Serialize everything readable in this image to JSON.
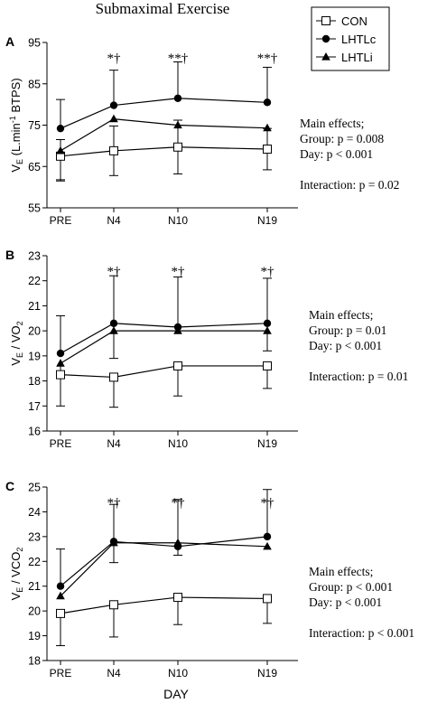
{
  "figure": {
    "title": "Submaximal Exercise",
    "x_axis_label": "DAY"
  },
  "legend": [
    {
      "name": "CON",
      "marker": "square-open"
    },
    {
      "name": "LHTLc",
      "marker": "circle-filled"
    },
    {
      "name": "LHTLi",
      "marker": "triangle-filled"
    }
  ],
  "chart_data": [
    {
      "type": "line",
      "panel_label": "A",
      "ylabel_main": "V",
      "ylabel_sub": "E",
      "ylabel_rest": " (L.min",
      "ylabel_sup": "-1",
      "ylabel_end": " BTPS)",
      "categories": [
        "PRE",
        "N4",
        "N10",
        "N19"
      ],
      "ylim": [
        55,
        95
      ],
      "yticks": [
        55,
        65,
        75,
        85,
        95
      ],
      "series": [
        {
          "name": "CON",
          "values": [
            67.5,
            68.8,
            69.7,
            69.2
          ],
          "error_plus": [
            4.0,
            6.0,
            6.5,
            5.0
          ],
          "error_minus": [
            6.0,
            6.0,
            6.5,
            5.0
          ]
        },
        {
          "name": "LHTLc",
          "values": [
            74.2,
            79.8,
            81.5,
            80.5
          ],
          "error_plus": [
            7.0,
            8.5,
            8.8,
            8.5
          ],
          "error_minus": [
            0,
            0,
            0,
            0
          ]
        },
        {
          "name": "LHTLi",
          "values": [
            68.8,
            76.5,
            75.0,
            74.3
          ],
          "error_plus": [
            0,
            0,
            0,
            0
          ],
          "error_minus": [
            7.0,
            0,
            0,
            0
          ]
        }
      ],
      "significance": [
        "",
        "*†",
        "**†",
        "**†"
      ],
      "annotations": [
        "Main effects;",
        "Group: p = 0.008",
        "Day: p < 0.001",
        "",
        "Interaction: p = 0.02"
      ]
    },
    {
      "type": "line",
      "panel_label": "B",
      "ylabel_main": "V",
      "ylabel_sub": "E",
      "ylabel_rest": " / VO",
      "ylabel_sub2": "2",
      "categories": [
        "PRE",
        "N4",
        "N10",
        "N19"
      ],
      "ylim": [
        16,
        23
      ],
      "yticks": [
        16,
        17,
        18,
        19,
        20,
        21,
        22,
        23
      ],
      "series": [
        {
          "name": "CON",
          "values": [
            18.25,
            18.15,
            18.6,
            18.6
          ],
          "error_plus": [
            0,
            0,
            0,
            0
          ],
          "error_minus": [
            1.25,
            1.2,
            1.2,
            0.9
          ]
        },
        {
          "name": "LHTLc",
          "values": [
            19.1,
            20.3,
            20.15,
            20.3
          ],
          "error_plus": [
            1.5,
            1.9,
            2.0,
            1.8
          ],
          "error_minus": [
            0,
            0,
            0,
            0
          ]
        },
        {
          "name": "LHTLi",
          "values": [
            18.7,
            20.0,
            20.0,
            20.0
          ],
          "error_plus": [
            0,
            0,
            0,
            0
          ],
          "error_minus": [
            0.6,
            1.1,
            0,
            0.8
          ]
        }
      ],
      "significance": [
        "",
        "*†",
        "*†",
        "*†"
      ],
      "annotations": [
        "Main effects;",
        "Group: p = 0.01",
        "Day: p < 0.001",
        "",
        "Interaction: p = 0.01"
      ]
    },
    {
      "type": "line",
      "panel_label": "C",
      "ylabel_main": "V",
      "ylabel_sub": "E",
      "ylabel_rest": " / VCO",
      "ylabel_sub2": "2",
      "categories": [
        "PRE",
        "N4",
        "N10",
        "N19"
      ],
      "ylim": [
        18,
        25
      ],
      "yticks": [
        18,
        19,
        20,
        21,
        22,
        23,
        24,
        25
      ],
      "series": [
        {
          "name": "CON",
          "values": [
            19.9,
            20.25,
            20.55,
            20.5
          ],
          "error_plus": [
            0,
            0,
            0,
            0
          ],
          "error_minus": [
            1.3,
            1.3,
            1.1,
            1.0
          ]
        },
        {
          "name": "LHTLc",
          "values": [
            21.0,
            22.8,
            22.6,
            23.0
          ],
          "error_plus": [
            1.5,
            1.5,
            1.9,
            1.9
          ],
          "error_minus": [
            0,
            0,
            0,
            0
          ]
        },
        {
          "name": "LHTLi",
          "values": [
            20.6,
            22.75,
            22.75,
            22.6
          ],
          "error_plus": [
            0,
            0,
            0,
            0
          ],
          "error_minus": [
            0,
            0.8,
            0.5,
            0
          ]
        }
      ],
      "significance": [
        "",
        "*†",
        "*†",
        "*†"
      ],
      "annotations": [
        "Main effects;",
        "Group: p < 0.001",
        "Day: p < 0.001",
        "",
        "Interaction: p < 0.001"
      ]
    }
  ]
}
